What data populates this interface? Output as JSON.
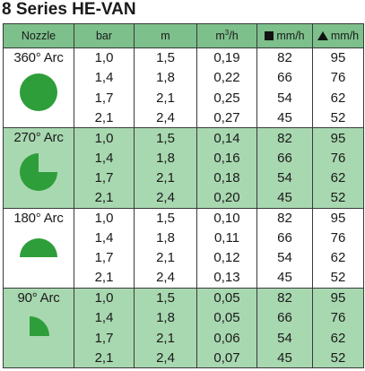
{
  "title": "8 Series HE-VAN",
  "headers": {
    "nozzle": "Nozzle",
    "bar": "bar",
    "m": "m",
    "flow_base": "m",
    "flow_sup": "3",
    "flow_tail": "/h",
    "precip_square": "mm/h",
    "precip_triangle": "mm/h"
  },
  "colors": {
    "header_bg": "#7dc08b",
    "group_green_bg": "#a8d8b0",
    "shape_fill": "#2e9e3a"
  },
  "groups": [
    {
      "arc": "360° Arc",
      "shape": "full-circle-icon",
      "rows": [
        [
          "1,0",
          "1,5",
          "0,19",
          "82",
          "95"
        ],
        [
          "1,4",
          "1,8",
          "0,22",
          "66",
          "76"
        ],
        [
          "1,7",
          "2,1",
          "0,25",
          "54",
          "62"
        ],
        [
          "2,1",
          "2,4",
          "0,27",
          "45",
          "52"
        ]
      ]
    },
    {
      "arc": "270° Arc",
      "shape": "three-quarter-circle-icon",
      "rows": [
        [
          "1,0",
          "1,5",
          "0,14",
          "82",
          "95"
        ],
        [
          "1,4",
          "1,8",
          "0,16",
          "66",
          "76"
        ],
        [
          "1,7",
          "2,1",
          "0,18",
          "54",
          "62"
        ],
        [
          "2,1",
          "2,4",
          "0,20",
          "45",
          "52"
        ]
      ]
    },
    {
      "arc": "180° Arc",
      "shape": "half-circle-icon",
      "rows": [
        [
          "1,0",
          "1,5",
          "0,10",
          "82",
          "95"
        ],
        [
          "1,4",
          "1,8",
          "0,11",
          "66",
          "76"
        ],
        [
          "1,7",
          "2,1",
          "0,12",
          "54",
          "62"
        ],
        [
          "2,1",
          "2,4",
          "0,13",
          "45",
          "52"
        ]
      ]
    },
    {
      "arc": "90° Arc",
      "shape": "quarter-circle-icon",
      "rows": [
        [
          "1,0",
          "1,5",
          "0,05",
          "82",
          "95"
        ],
        [
          "1,4",
          "1,8",
          "0,05",
          "66",
          "76"
        ],
        [
          "1,7",
          "2,1",
          "0,06",
          "54",
          "62"
        ],
        [
          "2,1",
          "2,4",
          "0,07",
          "45",
          "52"
        ]
      ]
    }
  ]
}
